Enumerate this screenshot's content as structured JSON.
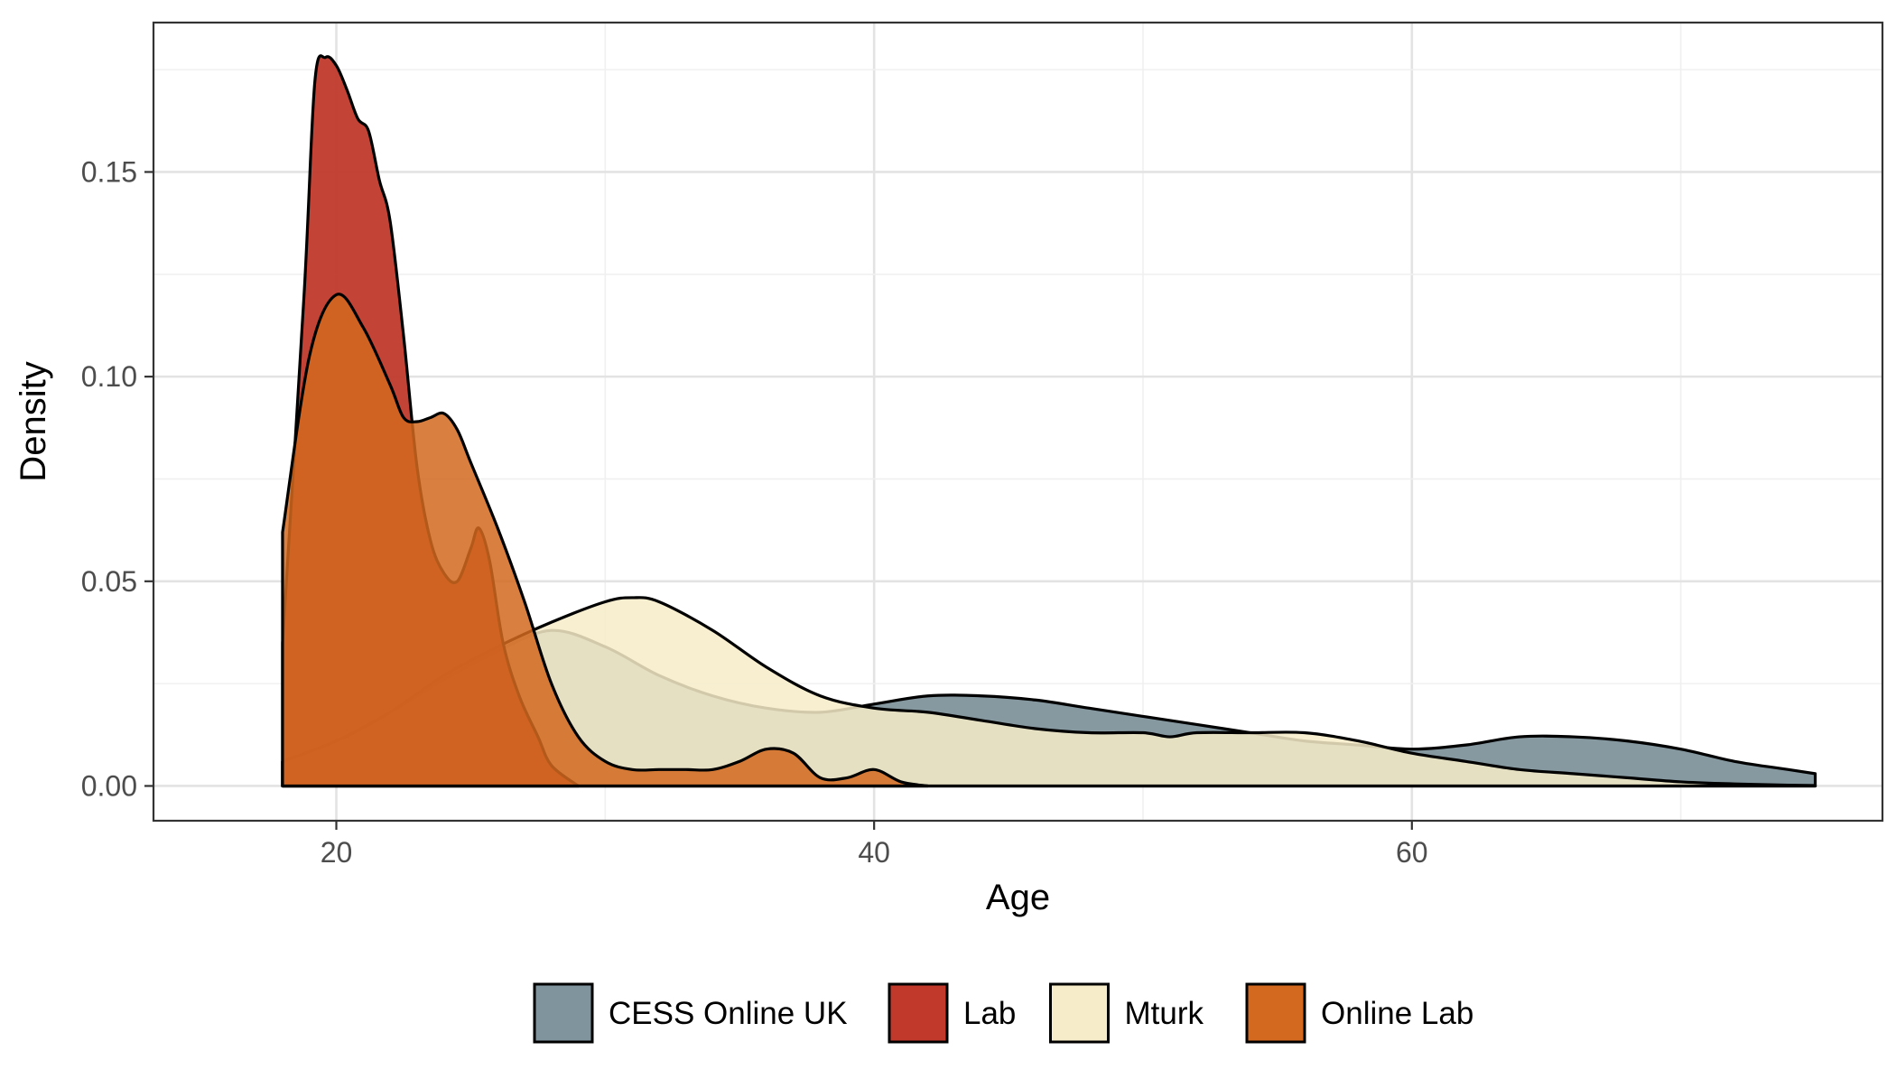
{
  "chart_data": {
    "type": "area",
    "title": "",
    "xlabel": "Age",
    "ylabel": "Density",
    "xlim": [
      13.2,
      77.5
    ],
    "ylim": [
      -0.0085,
      0.1865
    ],
    "x_ticks": [
      20,
      40,
      60
    ],
    "x_tick_labels": [
      "20",
      "40",
      "60"
    ],
    "y_ticks": [
      0.0,
      0.05,
      0.1,
      0.15
    ],
    "y_tick_labels": [
      "0.00",
      "0.05",
      "0.10",
      "0.15"
    ],
    "grid": true,
    "legend_position": "bottom",
    "series": [
      {
        "name": "CESS Online UK",
        "color": "#7f949c",
        "opacity": 0.95,
        "x": [
          18,
          20,
          22,
          24,
          26,
          28,
          30,
          32,
          34,
          36,
          38,
          40,
          42,
          44,
          46,
          48,
          50,
          52,
          54,
          56,
          58,
          60,
          62,
          64,
          66,
          68,
          70,
          72,
          74,
          75
        ],
        "y": [
          0.006,
          0.011,
          0.018,
          0.026,
          0.033,
          0.038,
          0.034,
          0.027,
          0.022,
          0.019,
          0.018,
          0.02,
          0.022,
          0.022,
          0.021,
          0.019,
          0.017,
          0.015,
          0.013,
          0.011,
          0.01,
          0.009,
          0.01,
          0.012,
          0.012,
          0.011,
          0.009,
          0.006,
          0.004,
          0.003
        ]
      },
      {
        "name": "Lab",
        "color": "#c0392b",
        "opacity": 0.95,
        "x": [
          18,
          18.8,
          19.2,
          19.6,
          20,
          20.4,
          20.8,
          21.2,
          21.6,
          22,
          22.5,
          23,
          23.5,
          24,
          24.5,
          25,
          25.3,
          25.7,
          26.2,
          26.8,
          27.5,
          28,
          29
        ],
        "y": [
          0.035,
          0.12,
          0.172,
          0.178,
          0.176,
          0.17,
          0.163,
          0.16,
          0.148,
          0.138,
          0.11,
          0.078,
          0.06,
          0.052,
          0.05,
          0.058,
          0.063,
          0.055,
          0.035,
          0.022,
          0.012,
          0.005,
          0.0
        ]
      },
      {
        "name": "Mturk",
        "color": "#f7ecc9",
        "opacity": 0.85,
        "x": [
          18,
          20,
          22,
          24,
          26,
          28,
          30,
          31,
          32,
          34,
          36,
          38,
          40,
          42,
          44,
          46,
          48,
          50,
          51,
          52,
          54,
          56,
          58,
          60,
          62,
          64,
          66,
          68,
          70,
          72,
          74,
          75
        ],
        "y": [
          0.006,
          0.011,
          0.018,
          0.027,
          0.034,
          0.04,
          0.045,
          0.046,
          0.045,
          0.038,
          0.029,
          0.022,
          0.019,
          0.018,
          0.016,
          0.014,
          0.013,
          0.013,
          0.012,
          0.013,
          0.013,
          0.013,
          0.011,
          0.008,
          0.006,
          0.004,
          0.003,
          0.002,
          0.001,
          0.0005,
          0.0002,
          0.0001
        ]
      },
      {
        "name": "Online Lab",
        "color": "#d2691e",
        "opacity": 0.85,
        "x": [
          18,
          19,
          20,
          21,
          22,
          22.5,
          23,
          23.5,
          24,
          24.5,
          25,
          26,
          27,
          28,
          29,
          30,
          31,
          32,
          33,
          34,
          35,
          36,
          37,
          38,
          39,
          40,
          41,
          42
        ],
        "y": [
          0.062,
          0.105,
          0.12,
          0.112,
          0.098,
          0.09,
          0.089,
          0.09,
          0.091,
          0.087,
          0.079,
          0.063,
          0.045,
          0.025,
          0.012,
          0.006,
          0.004,
          0.004,
          0.004,
          0.004,
          0.006,
          0.009,
          0.008,
          0.002,
          0.002,
          0.004,
          0.001,
          0.0
        ]
      }
    ],
    "draw_order": [
      "CESS Online UK",
      "Mturk",
      "Lab",
      "Online Lab"
    ]
  }
}
